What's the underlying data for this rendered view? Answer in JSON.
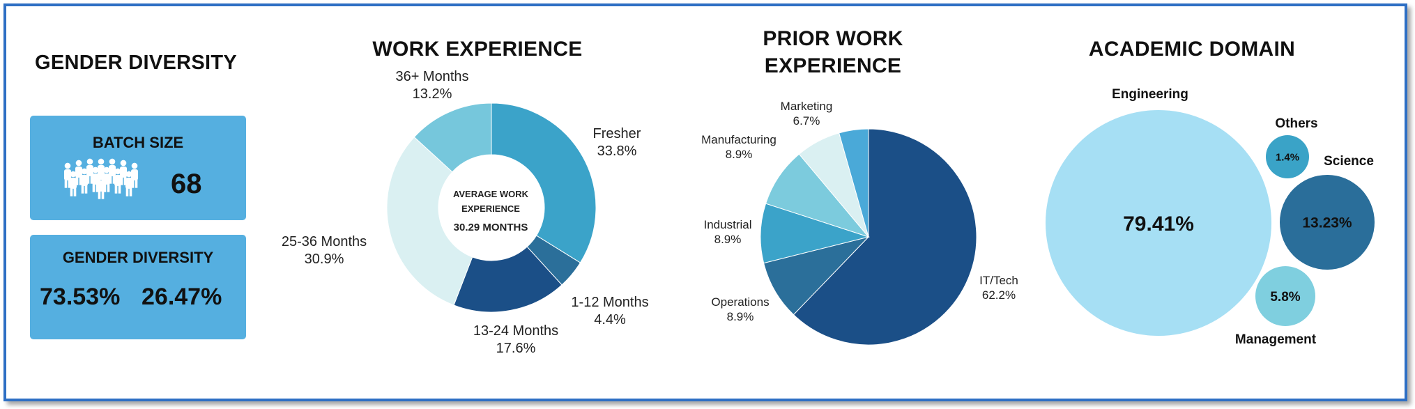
{
  "gender": {
    "heading": "GENDER DIVERSITY",
    "batch_title": "BATCH SIZE",
    "batch_value": "68",
    "diversity_title": "GENDER DIVERSITY",
    "diversity_values": [
      "73.53%",
      "26.47%"
    ]
  },
  "chart_data": [
    {
      "type": "pie",
      "title": "WORK EXPERIENCE",
      "center_label": [
        "AVERAGE WORK",
        "EXPERIENCE",
        "30.29 MONTHS"
      ],
      "slices": [
        {
          "label": "Fresher",
          "value": 33.8,
          "display": "33.8%",
          "color": "#3ba3c9"
        },
        {
          "label": "1-12 Months",
          "value": 4.4,
          "display": "4.4%",
          "color": "#2b6f9a"
        },
        {
          "label": "13-24 Months",
          "value": 17.6,
          "display": "17.6%",
          "color": "#1b4f87"
        },
        {
          "label": "25-36 Months",
          "value": 30.9,
          "display": "30.9%",
          "color": "#daf0f2"
        },
        {
          "label": "36+ Months",
          "value": 13.2,
          "display": "13.2%",
          "color": "#76c7dc"
        }
      ]
    },
    {
      "type": "pie",
      "title": "PRIOR WORK EXPERIENCE",
      "title_lines": [
        "PRIOR WORK",
        "EXPERIENCE"
      ],
      "slices": [
        {
          "label": "IT/Tech",
          "value": 62.2,
          "display": "62.2%",
          "color": "#1b4f87"
        },
        {
          "label": "Operations",
          "value": 8.9,
          "display": "8.9%",
          "color": "#2b6f9a"
        },
        {
          "label": "Industrial",
          "value": 8.9,
          "display": "8.9%",
          "color": "#3ba3c9"
        },
        {
          "label": "Manufacturing",
          "value": 8.9,
          "display": "8.9%",
          "color": "#7ccbdd"
        },
        {
          "label": "Marketing",
          "value": 6.7,
          "display": "6.7%",
          "color": "#daf0f2"
        },
        {
          "label": "",
          "value": 4.4,
          "display": "",
          "color": "#4aa9d8"
        }
      ]
    },
    {
      "type": "bubble",
      "title": "ACADEMIC DOMAIN",
      "bubbles": [
        {
          "label": "Engineering",
          "value": 79.41,
          "display": "79.41%",
          "color": "#a6dff4"
        },
        {
          "label": "Others",
          "value": 1.4,
          "display": "1.4%",
          "color": "#3aa3c7"
        },
        {
          "label": "Science",
          "value": 13.23,
          "display": "13.23%",
          "color": "#2a6e9a"
        },
        {
          "label": "Management",
          "value": 5.8,
          "display": "5.8%",
          "color": "#7fcfdf"
        }
      ]
    }
  ]
}
